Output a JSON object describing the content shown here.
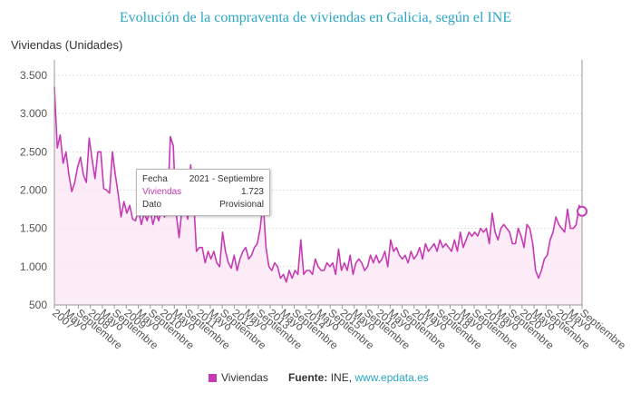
{
  "header": {
    "title": "Evolución de la compraventa de viviendas en Galicia, según el INE"
  },
  "tooltip": {
    "rows": [
      {
        "key": "Fecha",
        "value": "2021 - Septiembre"
      },
      {
        "key": "Viviendas",
        "value": "1.723"
      },
      {
        "key": "Dato",
        "value": "Provisional"
      }
    ]
  },
  "legend": {
    "series_label": "Viviendas",
    "source_label": "Fuente:",
    "source_name": "INE,",
    "source_link": "www.epdata.es"
  },
  "colors": {
    "series": "#c63bb4",
    "fill": "#fbe6f6",
    "title": "#2aa6c7",
    "grid": "#dddddd"
  },
  "chart_data": {
    "type": "area",
    "ylabel": "Viviendas (Unidades)",
    "ylim": [
      500,
      3700
    ],
    "yticks": [
      500,
      1000,
      1500,
      2000,
      2500,
      3000,
      3500
    ],
    "ytick_labels": [
      "500",
      "1.000",
      "1.500",
      "2.000",
      "2.500",
      "3.000",
      "3.500"
    ],
    "xtick_labels": [
      "2007",
      "Mayo",
      "Septiembre",
      "2008",
      "Mayo",
      "Septiembre",
      "2009",
      "Mayo",
      "Septiembre",
      "2010",
      "Mayo",
      "Septiembre",
      "2011",
      "Mayo",
      "Septiembre",
      "2012",
      "Mayo",
      "Septiembre",
      "2013",
      "Mayo",
      "Septiembre",
      "2014",
      "Mayo",
      "Septiembre",
      "2015",
      "Mayo",
      "Septiembre",
      "2016",
      "Mayo",
      "Septiembre",
      "2017",
      "Mayo",
      "Septiembre",
      "2018",
      "Mayo",
      "Septiembre",
      "2019",
      "Mayo",
      "Septiembre",
      "2020",
      "Mayo",
      "Septiembre",
      "2021",
      "Mayo",
      "Septiembre"
    ],
    "start": "2007 - Enero",
    "end": "2021 - Septiembre",
    "grid": true,
    "legend_position": "bottom",
    "series": [
      {
        "name": "Viviendas",
        "values": [
          3350,
          2550,
          2720,
          2350,
          2500,
          2200,
          1980,
          2100,
          2300,
          2430,
          2200,
          2100,
          2680,
          2400,
          2150,
          2500,
          2500,
          2020,
          2000,
          1960,
          2500,
          2200,
          1950,
          1650,
          1850,
          1700,
          1800,
          1620,
          1600,
          1750,
          1550,
          1700,
          1600,
          1750,
          1550,
          1700,
          1600,
          1800,
          1650,
          1750,
          2700,
          2580,
          1700,
          1380,
          1750,
          1800,
          1620,
          2330,
          1900,
          1200,
          1250,
          1250,
          1050,
          1200,
          1100,
          1200,
          1050,
          1000,
          1450,
          1200,
          1050,
          980,
          1150,
          950,
          1100,
          1200,
          1250,
          1100,
          1150,
          1250,
          1300,
          1500,
          1850,
          1250,
          1000,
          950,
          1050,
          1000,
          850,
          900,
          800,
          950,
          850,
          950,
          900,
          1350,
          900,
          950,
          950,
          900,
          1100,
          1000,
          950,
          950,
          1050,
          1000,
          1050,
          900,
          1230,
          950,
          1050,
          950,
          1150,
          900,
          1050,
          1100,
          1050,
          950,
          1000,
          1150,
          1050,
          1150,
          1050,
          1100,
          1200,
          1000,
          1350,
          1200,
          1250,
          1150,
          1100,
          1150,
          1050,
          1200,
          1100,
          1150,
          1250,
          1100,
          1300,
          1200,
          1250,
          1300,
          1200,
          1350,
          1250,
          1300,
          1250,
          1200,
          1350,
          1200,
          1450,
          1250,
          1350,
          1450,
          1400,
          1450,
          1400,
          1500,
          1450,
          1500,
          1300,
          1700,
          1450,
          1350,
          1500,
          1550,
          1500,
          1450,
          1300,
          1300,
          1500,
          1400,
          1250,
          1550,
          1500,
          1300,
          950,
          850,
          950,
          1100,
          1150,
          1350,
          1450,
          1650,
          1550,
          1500,
          1450,
          1750,
          1500,
          1500,
          1550,
          1800,
          1723
        ]
      }
    ]
  }
}
